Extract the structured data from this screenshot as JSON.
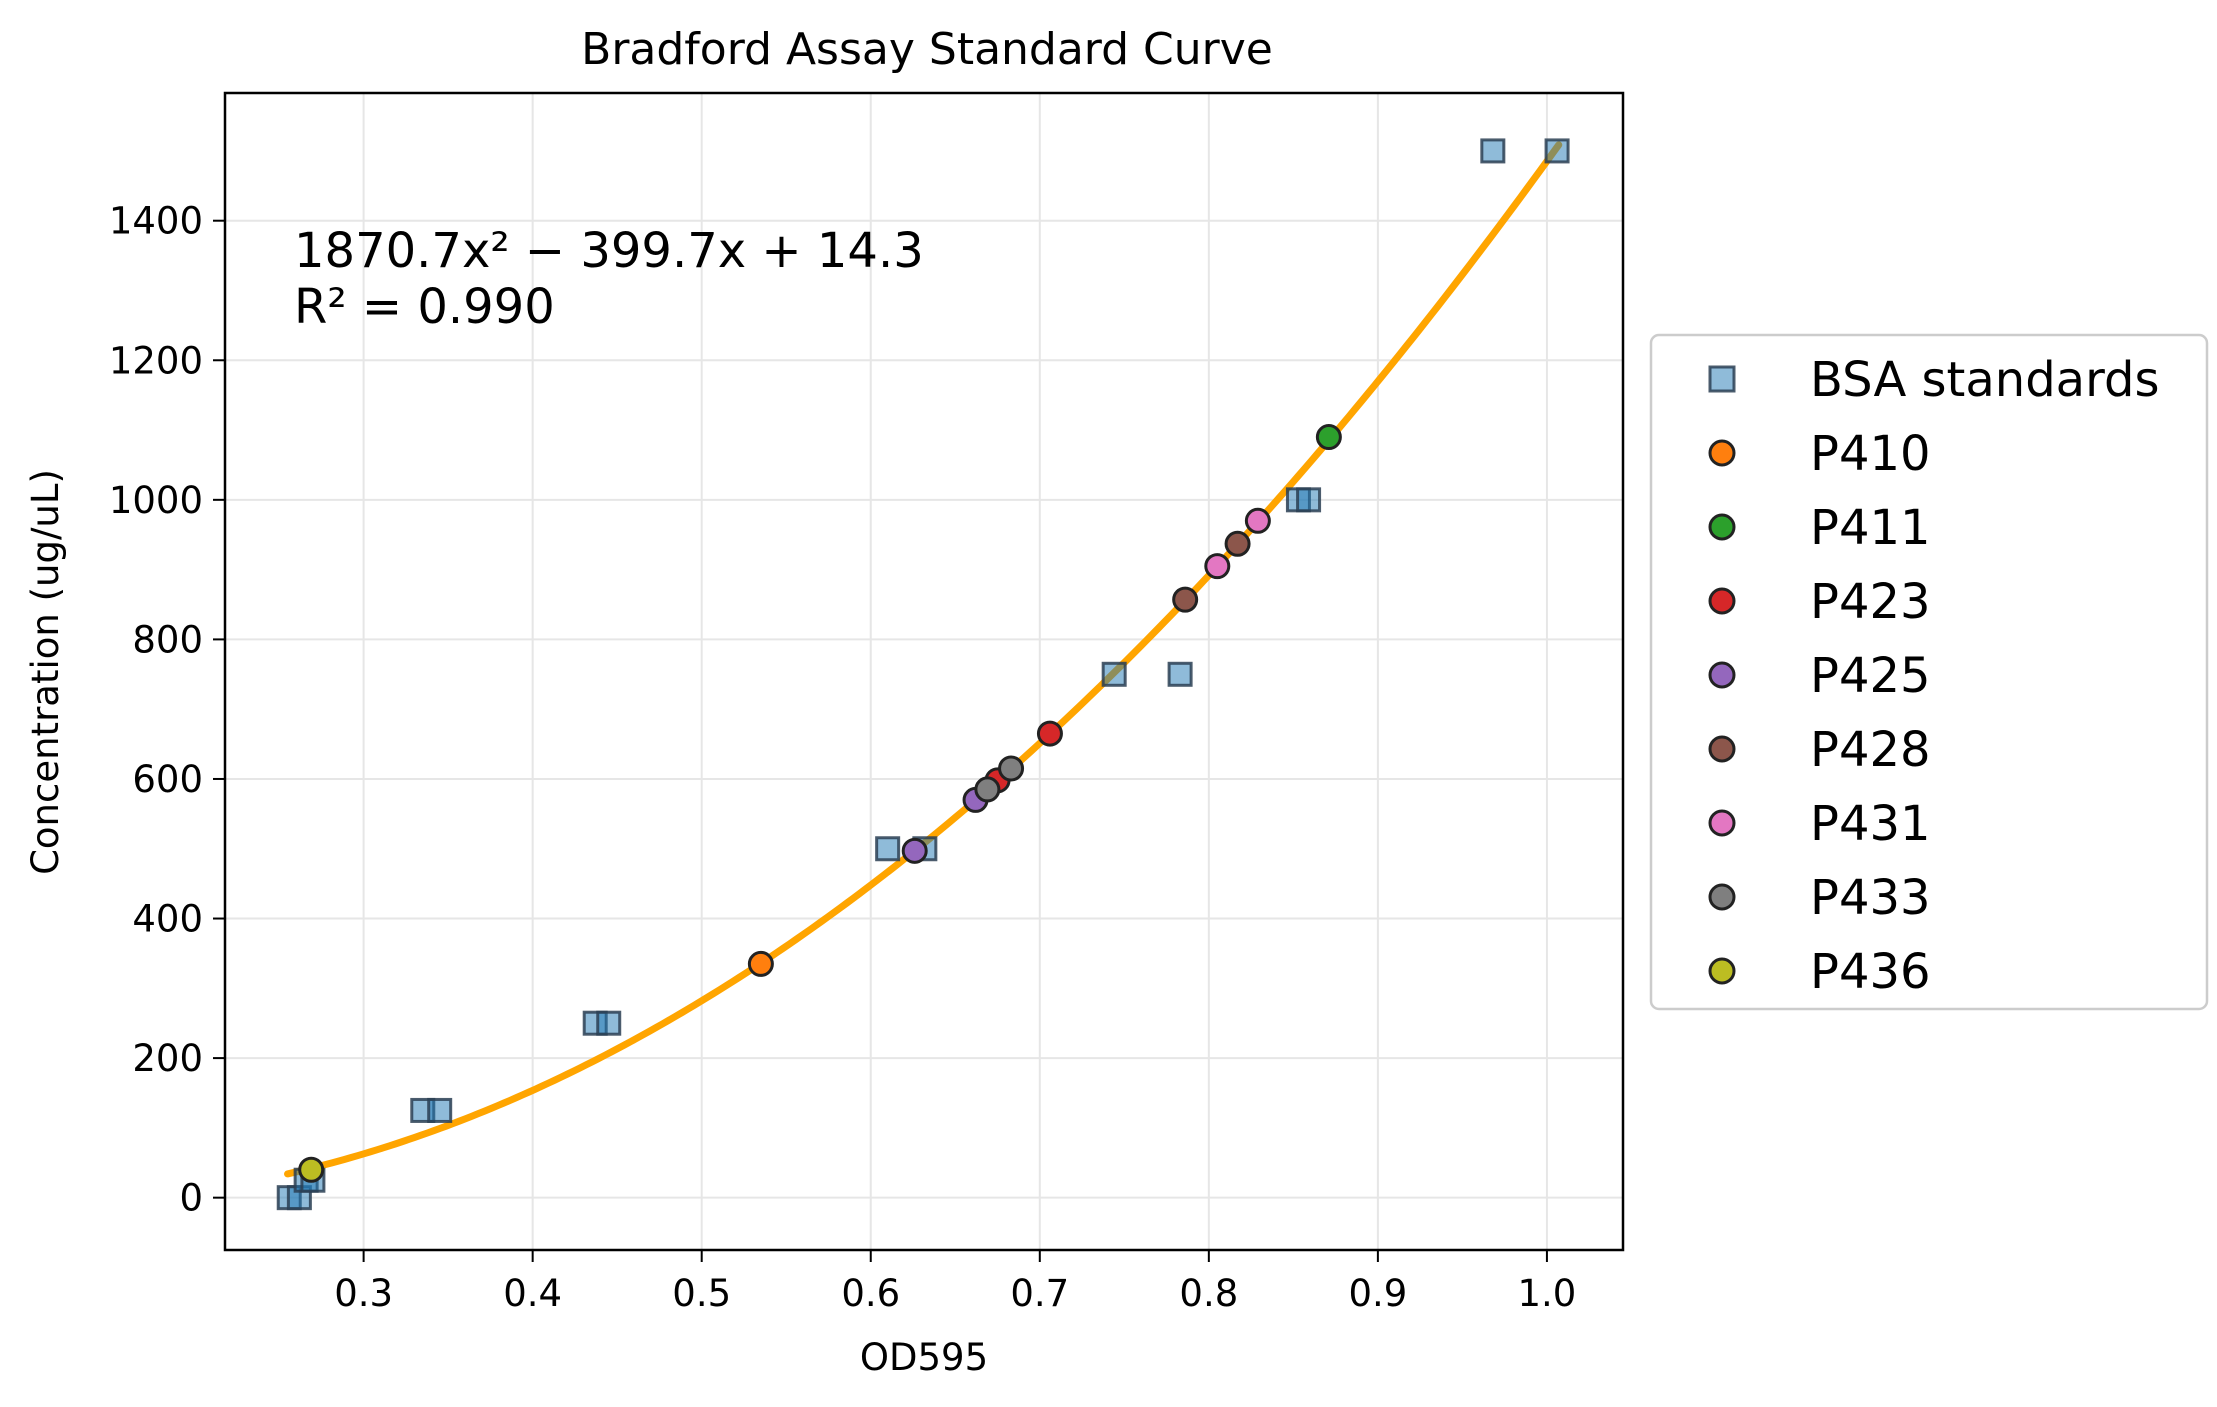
{
  "chart_data": {
    "type": "scatter",
    "title": "Bradford Assay Standard Curve",
    "xlabel": "OD595",
    "ylabel": "Concentration (ug/uL)",
    "xlim": [
      0.218,
      1.045
    ],
    "ylim": [
      -75,
      1583
    ],
    "x_ticks": [
      0.3,
      0.4,
      0.5,
      0.6,
      0.7,
      0.8,
      0.9,
      1.0
    ],
    "x_tick_labels": [
      "0.3",
      "0.4",
      "0.5",
      "0.6",
      "0.7",
      "0.8",
      "0.9",
      "1.0"
    ],
    "y_ticks": [
      0,
      200,
      400,
      600,
      800,
      1000,
      1200,
      1400
    ],
    "y_tick_labels": [
      "0",
      "200",
      "400",
      "600",
      "800",
      "1000",
      "1200",
      "1400"
    ],
    "grid": true,
    "legend_position": "outside-right",
    "fit": {
      "coefficients": [
        1870.7,
        -399.7,
        14.3
      ],
      "x_range": [
        0.255,
        1.007
      ],
      "equation": "1870.7x² − 399.7x + 14.3",
      "r_squared": "R² = 0.990",
      "color": "#ffa500"
    },
    "series": [
      {
        "name": "BSA standards",
        "marker": "square",
        "color": "#1f77b4",
        "points": [
          [
            0.256,
            0
          ],
          [
            0.262,
            0
          ],
          [
            0.266,
            25
          ],
          [
            0.27,
            25
          ],
          [
            0.335,
            125
          ],
          [
            0.345,
            125
          ],
          [
            0.437,
            250
          ],
          [
            0.445,
            250
          ],
          [
            0.61,
            500
          ],
          [
            0.632,
            500
          ],
          [
            0.744,
            750
          ],
          [
            0.783,
            750
          ],
          [
            0.853,
            1000
          ],
          [
            0.859,
            1000
          ],
          [
            0.968,
            1500
          ],
          [
            1.006,
            1500
          ]
        ]
      },
      {
        "name": "P410",
        "marker": "circle",
        "color": "#ff7f0e",
        "points": [
          [
            0.535,
            335
          ]
        ]
      },
      {
        "name": "P411",
        "marker": "circle",
        "color": "#2ca02c",
        "points": [
          [
            0.871,
            1090
          ]
        ]
      },
      {
        "name": "P423",
        "marker": "circle",
        "color": "#d62728",
        "points": [
          [
            0.675,
            598
          ],
          [
            0.706,
            665
          ]
        ]
      },
      {
        "name": "P425",
        "marker": "circle",
        "color": "#9467bd",
        "points": [
          [
            0.626,
            497
          ],
          [
            0.662,
            570
          ]
        ]
      },
      {
        "name": "P428",
        "marker": "circle",
        "color": "#8c564b",
        "points": [
          [
            0.786,
            857
          ],
          [
            0.817,
            937
          ]
        ]
      },
      {
        "name": "P431",
        "marker": "circle",
        "color": "#e377c2",
        "points": [
          [
            0.805,
            905
          ],
          [
            0.829,
            970
          ]
        ]
      },
      {
        "name": "P433",
        "marker": "circle",
        "color": "#7f7f7f",
        "points": [
          [
            0.669,
            585
          ],
          [
            0.683,
            615
          ]
        ]
      },
      {
        "name": "P436",
        "marker": "circle",
        "color": "#bcbd22",
        "points": [
          [
            0.269,
            40
          ]
        ]
      }
    ]
  }
}
